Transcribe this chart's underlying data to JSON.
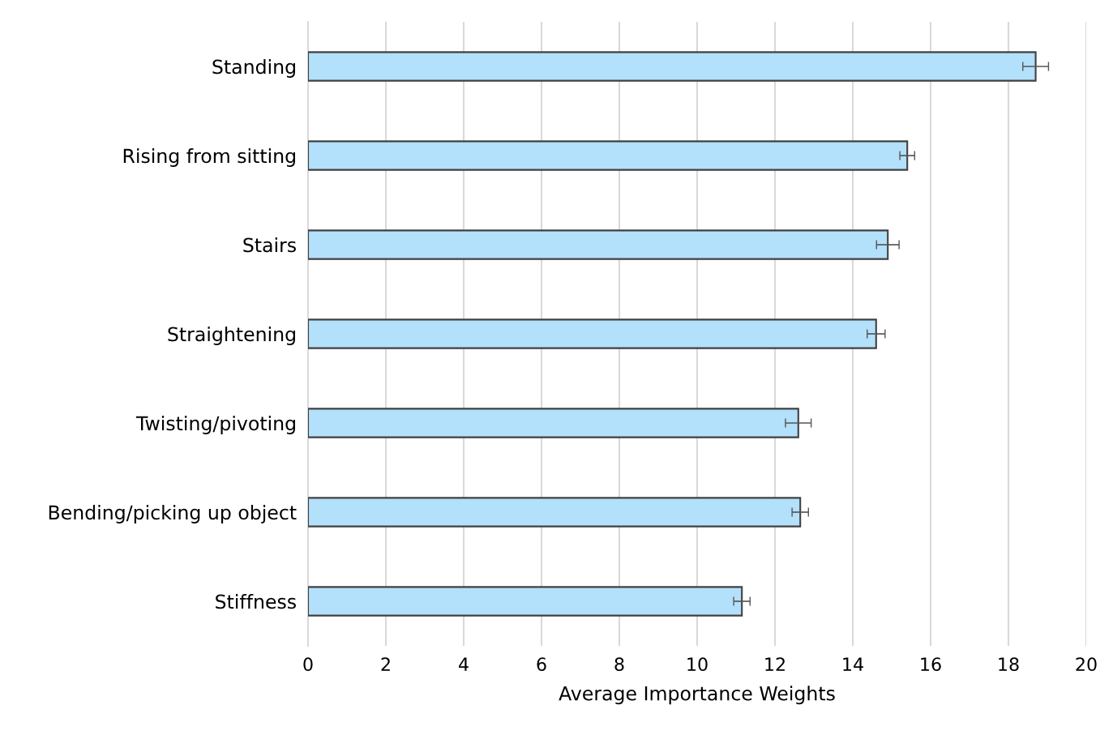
{
  "chart_data": {
    "type": "bar",
    "orientation": "horizontal",
    "xlabel": "Average Importance Weights",
    "categories": [
      "Standing",
      "Rising from sitting",
      "Stairs",
      "Straightening",
      "Twisting/pivoting",
      "Bending/picking up object",
      "Stiffness"
    ],
    "values": [
      18.7,
      15.4,
      14.9,
      14.6,
      12.6,
      12.65,
      11.15
    ],
    "errors": [
      0.33,
      0.19,
      0.29,
      0.23,
      0.33,
      0.21,
      0.21
    ],
    "color": "#b3e0fb",
    "xlim": [
      0,
      20
    ],
    "xticks": [
      0,
      2,
      4,
      6,
      8,
      10,
      12,
      14,
      16,
      18,
      20
    ],
    "grid": "x"
  }
}
